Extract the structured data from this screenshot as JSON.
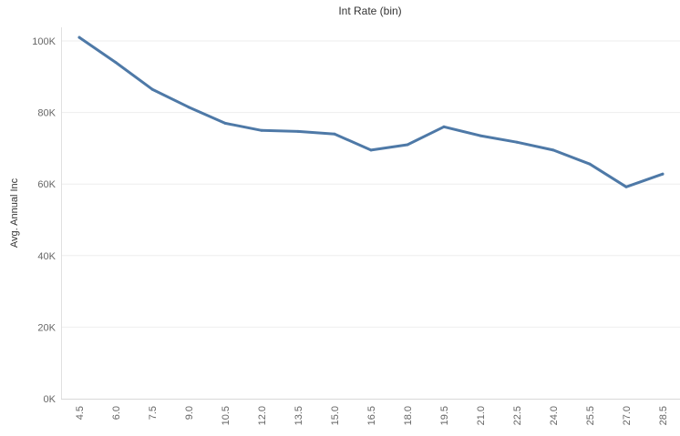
{
  "chart_data": {
    "type": "line",
    "title": "Int Rate (bin)",
    "xlabel": "",
    "ylabel": "Avg. Annual Inc",
    "categories": [
      "4.5",
      "6.0",
      "7.5",
      "9.0",
      "10.5",
      "12.0",
      "13.5",
      "15.0",
      "16.5",
      "18.0",
      "19.5",
      "21.0",
      "22.5",
      "24.0",
      "25.5",
      "27.0",
      "28.5"
    ],
    "y_ticks": [
      "0K",
      "20K",
      "40K",
      "60K",
      "80K",
      "100K"
    ],
    "ylim": [
      0,
      103000
    ],
    "series": [
      {
        "values": [
          101000,
          94000,
          86500,
          81500,
          77000,
          75000,
          74700,
          74000,
          69500,
          71000,
          76000,
          73500,
          71700,
          69500,
          65600,
          59200,
          62800
        ]
      }
    ],
    "grid": "horizontal",
    "line_color": "#4e79a7"
  }
}
